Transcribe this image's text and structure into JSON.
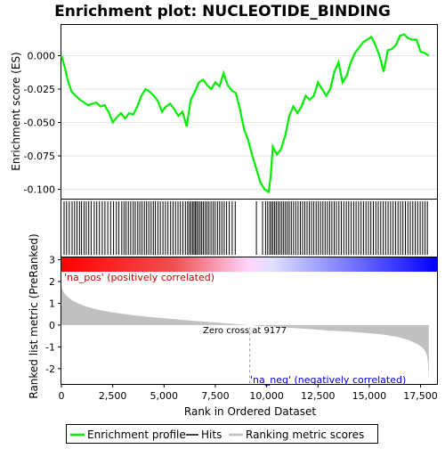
{
  "chart_data": {
    "type": "line",
    "title": "Enrichment plot: NUCLEOTIDE_BINDING",
    "top_panel": {
      "ylabel": "Enrichment score (ES)",
      "ylim": [
        -0.107,
        0.023
      ],
      "yticks": [
        0.0,
        -0.025,
        -0.05,
        -0.075,
        -0.1
      ],
      "ytick_labels": [
        "0.000",
        "-0.025",
        "-0.050",
        "-0.075",
        "-0.100"
      ],
      "series": {
        "name": "Enrichment profile",
        "color": "#00ee00",
        "x": [
          0,
          150,
          300,
          500,
          700,
          900,
          1100,
          1300,
          1500,
          1700,
          1900,
          2100,
          2300,
          2500,
          2700,
          2900,
          3100,
          3300,
          3500,
          3700,
          3900,
          4100,
          4300,
          4500,
          4700,
          4900,
          5100,
          5300,
          5500,
          5700,
          5900,
          6100,
          6300,
          6500,
          6700,
          6900,
          7100,
          7300,
          7500,
          7700,
          7900,
          8100,
          8300,
          8500,
          8700,
          8900,
          9100,
          9300,
          9500,
          9700,
          9900,
          10100,
          10200,
          10300,
          10500,
          10700,
          10900,
          11100,
          11300,
          11500,
          11700,
          11900,
          12100,
          12300,
          12500,
          12700,
          12900,
          13100,
          13300,
          13500,
          13700,
          13900,
          14100,
          14300,
          14500,
          14700,
          14900,
          15100,
          15300,
          15500,
          15700,
          15900,
          16100,
          16300,
          16500,
          16700,
          16900,
          17100,
          17300,
          17500,
          17700,
          17900
        ],
        "y": [
          0.0,
          -0.008,
          -0.018,
          -0.027,
          -0.03,
          -0.033,
          -0.035,
          -0.037,
          -0.036,
          -0.035,
          -0.038,
          -0.037,
          -0.042,
          -0.05,
          -0.046,
          -0.043,
          -0.047,
          -0.043,
          -0.044,
          -0.038,
          -0.03,
          -0.025,
          -0.027,
          -0.03,
          -0.034,
          -0.042,
          -0.038,
          -0.036,
          -0.04,
          -0.045,
          -0.042,
          -0.053,
          -0.033,
          -0.027,
          -0.02,
          -0.018,
          -0.022,
          -0.025,
          -0.02,
          -0.023,
          -0.013,
          -0.022,
          -0.026,
          -0.028,
          -0.04,
          -0.055,
          -0.063,
          -0.075,
          -0.085,
          -0.095,
          -0.1,
          -0.102,
          -0.09,
          -0.068,
          -0.074,
          -0.07,
          -0.06,
          -0.045,
          -0.038,
          -0.043,
          -0.038,
          -0.03,
          -0.033,
          -0.03,
          -0.02,
          -0.025,
          -0.03,
          -0.025,
          -0.012,
          -0.005,
          -0.02,
          -0.015,
          -0.005,
          0.002,
          0.006,
          0.01,
          0.012,
          0.014,
          0.008,
          0.0,
          -0.012,
          0.004,
          0.005,
          0.008,
          0.015,
          0.016,
          0.013,
          0.012,
          0.012,
          0.003,
          0.002,
          0.0
        ]
      }
    },
    "hits_panel": {
      "legend_label": "Hits",
      "hits": [
        130,
        250,
        380,
        520,
        640,
        760,
        880,
        980,
        1100,
        1210,
        1330,
        1450,
        1600,
        1720,
        1850,
        1990,
        2120,
        2260,
        2400,
        2540,
        2680,
        2800,
        2940,
        3050,
        3150,
        3260,
        3380,
        3500,
        3600,
        3720,
        3820,
        3930,
        4040,
        4150,
        4260,
        4370,
        4480,
        4580,
        4700,
        4820,
        4950,
        5070,
        5190,
        5320,
        5440,
        5560,
        5680,
        5800,
        5920,
        6040,
        6150,
        6230,
        6310,
        6390,
        6460,
        6530,
        6600,
        6680,
        6760,
        6840,
        6920,
        7010,
        7100,
        7190,
        7290,
        7390,
        7490,
        7600,
        7710,
        7820,
        7930,
        8050,
        8180,
        8320,
        8470,
        9500,
        9800,
        9950,
        10050,
        10150,
        10230,
        10310,
        10390,
        10470,
        10560,
        10650,
        10740,
        10830,
        10920,
        11010,
        11100,
        11200,
        11310,
        11420,
        11530,
        11640,
        11750,
        11860,
        11970,
        12080,
        12190,
        12300,
        12410,
        12520,
        12630,
        12740,
        12850,
        12960,
        13070,
        13180,
        13290,
        13400,
        13520,
        13640,
        13760,
        13880,
        14000,
        14120,
        14240,
        14360,
        14480,
        14600,
        14720,
        14840,
        14960,
        15080,
        15200,
        15320,
        15440,
        15560,
        15680,
        15800,
        15920,
        16040,
        16160,
        16280,
        16400,
        16520,
        16640,
        16760,
        16880,
        17000,
        17120,
        17240,
        17360,
        17480,
        17600,
        17720,
        17830
      ]
    },
    "bottom_panel": {
      "ylabel": "Ranked list metric (PreRanked)",
      "xlabel": "Rank in Ordered Dataset",
      "ylim": [
        -2.7,
        3.1
      ],
      "yticks": [
        3,
        2,
        1,
        0,
        -1,
        -2
      ],
      "ytick_labels": [
        "3",
        "2",
        "1",
        "0",
        "-1",
        "-2"
      ],
      "legend_label": "Ranking metric scores",
      "metric_color": "#c0c0c0",
      "metric_x": [
        0,
        50,
        150,
        300,
        500,
        800,
        1200,
        1800,
        2500,
        3500,
        4500,
        5500,
        6500,
        7500,
        8500,
        9177,
        10000,
        11000,
        12000,
        13000,
        14000,
        15000,
        15800,
        16400,
        16900,
        17300,
        17550,
        17700,
        17800,
        17860,
        17900
      ],
      "metric_y": [
        1.75,
        1.6,
        1.45,
        1.3,
        1.15,
        1.0,
        0.85,
        0.7,
        0.58,
        0.45,
        0.35,
        0.27,
        0.19,
        0.12,
        0.05,
        0.0,
        -0.06,
        -0.12,
        -0.18,
        -0.25,
        -0.3,
        -0.37,
        -0.45,
        -0.55,
        -0.68,
        -0.85,
        -1.0,
        -1.15,
        -1.35,
        -1.7,
        -2.6
      ],
      "zero_cross": 9177,
      "zero_cross_label": "Zero cross at 9177",
      "na_pos_label": "'na_pos' (positively correlated)",
      "na_neg_label": "'na_neg' (negatively correlated)"
    },
    "x": {
      "xlim": [
        0,
        18300
      ],
      "xticks": [
        0,
        2500,
        5000,
        7500,
        10000,
        12500,
        15000,
        17500
      ],
      "xtick_labels": [
        "0",
        "2,500",
        "5,000",
        "7,500",
        "10,000",
        "12,500",
        "15,000",
        "17,500"
      ]
    },
    "legend": {
      "entries": [
        "Enrichment profile",
        "Hits",
        "Ranking metric scores"
      ],
      "colors": [
        "#00ee00",
        "#000000",
        "#c0c0c0"
      ]
    }
  }
}
